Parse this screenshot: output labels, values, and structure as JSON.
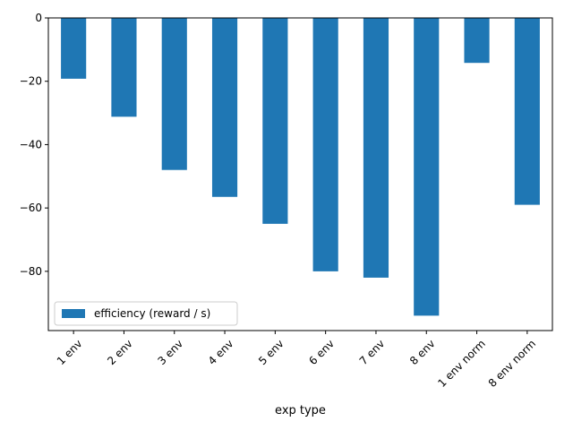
{
  "chart_data": {
    "type": "bar",
    "categories": [
      "1 env",
      "2 env",
      "3 env",
      "4 env",
      "5 env",
      "6 env",
      "7 env",
      "8 env",
      "1 env norm",
      "8 env norm"
    ],
    "series": [
      {
        "name": "efficiency (reward / s)",
        "values": [
          -19.2,
          -31.2,
          -48.0,
          -56.5,
          -65.0,
          -80.0,
          -82.0,
          -94.0,
          -14.2,
          -59.0
        ],
        "color": "#1f77b4"
      }
    ],
    "xlabel": "exp type",
    "ylabel": "",
    "ylim": [
      -98.7,
      0
    ],
    "yticks": [
      0,
      -20,
      -40,
      -60,
      -80
    ],
    "grid": false,
    "legend_position": "lower-left",
    "tick_rotation": 45
  }
}
